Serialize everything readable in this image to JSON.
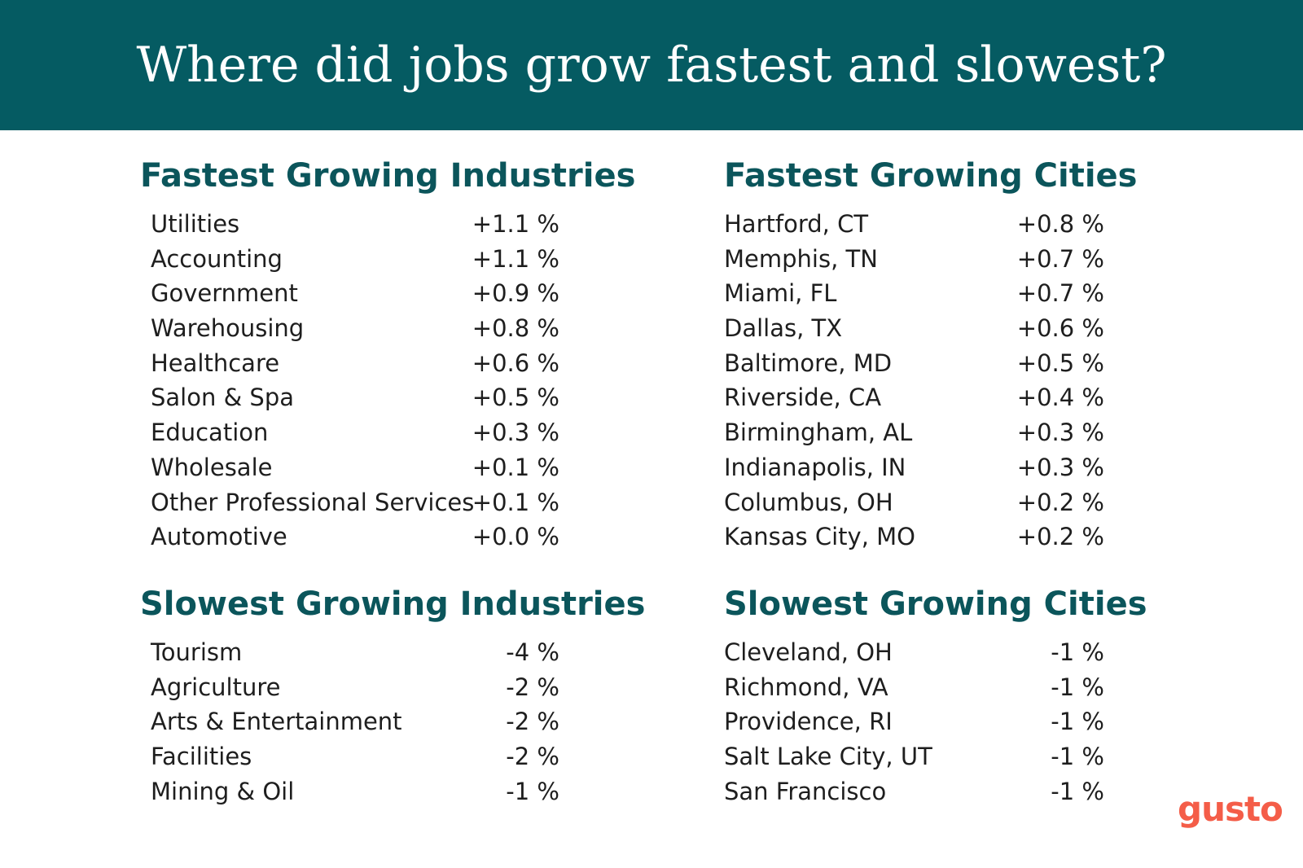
{
  "title": "Where did jobs grow fastest and slowest?",
  "brand": {
    "logo_text": "gusto",
    "colors": {
      "banner": "#055b62",
      "heading": "#0b555b",
      "logo": "#f45d48",
      "text": "#1e1e1e"
    }
  },
  "chart_data": [
    {
      "type": "table",
      "title": "Fastest Growing Industries",
      "categories": [
        "Utilities",
        "Accounting",
        "Government",
        "Warehousing",
        "Healthcare",
        "Salon & Spa",
        "Education",
        "Wholesale",
        "Other Professional Services",
        "Automotive"
      ],
      "values": [
        1.1,
        1.1,
        0.9,
        0.8,
        0.6,
        0.5,
        0.3,
        0.1,
        0.1,
        0.0
      ],
      "labels": [
        "+1.1 %",
        "+1.1 %",
        "+0.9 %",
        "+0.8 %",
        "+0.6 %",
        "+0.5 %",
        "+0.3 %",
        "+0.1 %",
        "+0.1 %",
        "+0.0 %"
      ]
    },
    {
      "type": "table",
      "title": "Fastest Growing Cities",
      "categories": [
        "Hartford, CT",
        "Memphis, TN",
        "Miami, FL",
        "Dallas, TX",
        "Baltimore, MD",
        "Riverside, CA",
        "Birmingham, AL",
        "Indianapolis, IN",
        "Columbus, OH",
        "Kansas City, MO"
      ],
      "values": [
        0.8,
        0.7,
        0.7,
        0.6,
        0.5,
        0.4,
        0.3,
        0.3,
        0.2,
        0.2
      ],
      "labels": [
        "+0.8 %",
        "+0.7 %",
        "+0.7 %",
        "+0.6 %",
        "+0.5 %",
        "+0.4 %",
        "+0.3 %",
        "+0.3 %",
        "+0.2 %",
        "+0.2 %"
      ]
    },
    {
      "type": "table",
      "title": "Slowest Growing Industries",
      "categories": [
        "Tourism",
        "Agriculture",
        "Arts & Entertainment",
        "Facilities",
        "Mining & Oil"
      ],
      "values": [
        -4,
        -2,
        -2,
        -2,
        -1
      ],
      "labels": [
        "-4 %",
        "-2 %",
        "-2 %",
        "-2 %",
        "-1 %"
      ]
    },
    {
      "type": "table",
      "title": "Slowest Growing Cities",
      "categories": [
        "Cleveland, OH",
        "Richmond, VA",
        "Providence, RI",
        "Salt Lake City, UT",
        "San Francisco"
      ],
      "values": [
        -1,
        -1,
        -1,
        -1,
        -1
      ],
      "labels": [
        "-1 %",
        "-1 %",
        "-1 %",
        "-1 %",
        "-1 %"
      ]
    }
  ]
}
